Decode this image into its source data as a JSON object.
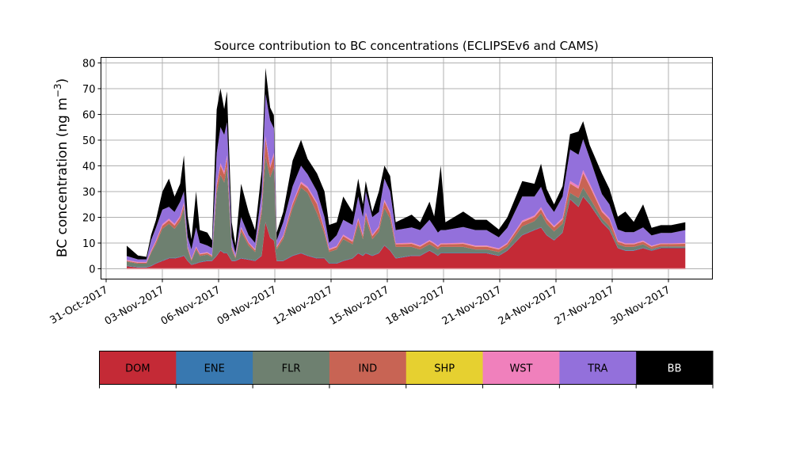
{
  "chart_data": {
    "type": "area",
    "stacked": true,
    "title": "Source contribution to BC concentrations (ECLIPSEv6 and CAMS)",
    "xlabel": "",
    "ylabel": "BC concentration (ng m",
    "ylabel_sup": "−3",
    "ylabel_close": ")",
    "ylim": [
      -4,
      82
    ],
    "yticks": [
      0,
      10,
      20,
      30,
      40,
      50,
      60,
      70,
      80
    ],
    "x_unit": "days since 31-Oct-2017",
    "xlim": [
      -0.3,
      32.3
    ],
    "xticks": [
      {
        "day": 0,
        "label": "31-Oct-2017"
      },
      {
        "day": 3,
        "label": "03-Nov-2017"
      },
      {
        "day": 6,
        "label": "06-Nov-2017"
      },
      {
        "day": 9,
        "label": "09-Nov-2017"
      },
      {
        "day": 12,
        "label": "12-Nov-2017"
      },
      {
        "day": 15,
        "label": "15-Nov-2017"
      },
      {
        "day": 18,
        "label": "18-Nov-2017"
      },
      {
        "day": 21,
        "label": "21-Nov-2017"
      },
      {
        "day": 24,
        "label": "24-Nov-2017"
      },
      {
        "day": 27,
        "label": "27-Nov-2017"
      },
      {
        "day": 30,
        "label": "30-Nov-2017"
      }
    ],
    "grid": true,
    "legend_position": "bottom-colorbar",
    "x": [
      1.1,
      1.7,
      2.15,
      2.4,
      2.65,
      3.0,
      3.35,
      3.65,
      3.95,
      4.15,
      4.35,
      4.55,
      4.8,
      5.0,
      5.4,
      5.65,
      5.9,
      6.1,
      6.3,
      6.45,
      6.7,
      6.9,
      7.2,
      7.6,
      7.95,
      8.3,
      8.5,
      8.75,
      8.95,
      9.1,
      9.45,
      9.95,
      10.4,
      10.75,
      11.25,
      11.65,
      11.9,
      12.3,
      12.65,
      13.15,
      13.45,
      13.7,
      13.85,
      14.2,
      14.55,
      14.85,
      15.15,
      15.45,
      16.3,
      16.75,
      17.25,
      17.5,
      17.7,
      17.85,
      18.1,
      19.05,
      19.7,
      20.3,
      20.95,
      21.4,
      22.2,
      22.85,
      23.2,
      23.5,
      23.9,
      24.35,
      24.75,
      25.2,
      25.45,
      25.8,
      26.45,
      26.85,
      27.3,
      27.7,
      28.15,
      28.65,
      29.1,
      29.6,
      30.15,
      30.9
    ],
    "series": [
      {
        "name": "DOM",
        "color": "#c42a36",
        "values": [
          1,
          0.5,
          0.5,
          1,
          2,
          3,
          4,
          4,
          4.5,
          5,
          3,
          1.5,
          2,
          2.5,
          3,
          3,
          5,
          7,
          6,
          6,
          3,
          3,
          4,
          3.5,
          3,
          5,
          18,
          12,
          11,
          3,
          3,
          5,
          6,
          5,
          4,
          4,
          2,
          2,
          3,
          4,
          6,
          5,
          6,
          5,
          6,
          9,
          7,
          4,
          5,
          5,
          7,
          6,
          5,
          6,
          6,
          6,
          6,
          6,
          5,
          7,
          13,
          15,
          16,
          13,
          11,
          14,
          27,
          24,
          28,
          25,
          18,
          15,
          8,
          7,
          7,
          8,
          7,
          8,
          8,
          8
        ]
      },
      {
        "name": "ENE",
        "color": "#3878b0",
        "values": [
          0.2,
          0.2,
          0.2,
          0.2,
          0.2,
          0.2,
          0.2,
          0.2,
          0.2,
          0.2,
          0.2,
          0.2,
          0.2,
          0.2,
          0.2,
          0.2,
          0.2,
          0.2,
          0.2,
          0.2,
          0.2,
          0.2,
          0.2,
          0.2,
          0.2,
          0.2,
          0.2,
          0.2,
          0.2,
          0.2,
          0.2,
          0.2,
          0.2,
          0.2,
          0.2,
          0.2,
          0.2,
          0.2,
          0.2,
          0.2,
          0.2,
          0.2,
          0.2,
          0.2,
          0.2,
          0.2,
          0.2,
          0.2,
          0.2,
          0.2,
          0.2,
          0.2,
          0.2,
          0.2,
          0.2,
          0.2,
          0.2,
          0.2,
          0.2,
          0.2,
          0.2,
          0.2,
          0.2,
          0.2,
          0.2,
          0.2,
          0.2,
          0.2,
          0.2,
          0.2,
          0.2,
          0.2,
          0.2,
          0.2,
          0.2,
          0.2,
          0.2,
          0.2,
          0.2,
          0.2
        ]
      },
      {
        "name": "FLR",
        "color": "#6e8070",
        "values": [
          1.6,
          1.3,
          1.3,
          5,
          7.3,
          12.3,
          13.3,
          11.3,
          13.8,
          18.3,
          4.3,
          1.3,
          5.3,
          2.3,
          2.3,
          1.3,
          24.3,
          29.3,
          27.3,
          33.3,
          4.3,
          0.8,
          10.3,
          5.3,
          3.3,
          16.3,
          25.3,
          23.3,
          28.3,
          4.3,
          8.3,
          18.3,
          25.3,
          24.3,
          17.3,
          9.3,
          4.3,
          5.3,
          8.3,
          5.3,
          11.3,
          6.3,
          13.3,
          6.3,
          8.3,
          14.3,
          12.3,
          4.3,
          3.3,
          2.3,
          2.3,
          2.3,
          2.3,
          2.3,
          2.3,
          2.3,
          1.3,
          1.3,
          1.3,
          1.3,
          3.3,
          3.3,
          5.3,
          4.3,
          3.3,
          3.3,
          2.3,
          3.3,
          3.3,
          2.3,
          1.3,
          1.3,
          1.3,
          1.3,
          1.3,
          1.3,
          0.5,
          0.5,
          0.5,
          0.5
        ]
      },
      {
        "name": "IND",
        "color": "#c86454",
        "values": [
          0.3,
          0.3,
          0.3,
          0.5,
          0.8,
          1.2,
          1.3,
          1.3,
          1.4,
          1.5,
          0.8,
          0.5,
          0.7,
          0.6,
          0.6,
          0.5,
          2.6,
          3.6,
          3.2,
          3.6,
          0.8,
          0.5,
          1.2,
          0.9,
          0.7,
          2.0,
          7.0,
          3.6,
          4.6,
          0.8,
          1.0,
          1.6,
          1.6,
          1.7,
          3.6,
          1.4,
          0.8,
          0.9,
          1.2,
          1.0,
          1.6,
          1.2,
          1.8,
          1.2,
          1.4,
          2.6,
          2.0,
          1.0,
          1.2,
          1.1,
          1.2,
          1.1,
          1.0,
          1.0,
          1.0,
          1.2,
          1.1,
          1.1,
          1.0,
          1.1,
          1.6,
          1.6,
          1.6,
          1.6,
          1.6,
          1.6,
          3.6,
          3.6,
          5.6,
          4.6,
          2.6,
          2.6,
          1.0,
          1.0,
          1.0,
          1.0,
          0.9,
          0.9,
          0.9,
          1.0
        ]
      },
      {
        "name": "SHP",
        "color": "#e6d030",
        "values": [
          0.05,
          0.05,
          0.05,
          0.05,
          0.05,
          0.05,
          0.05,
          0.05,
          0.05,
          0.05,
          0.05,
          0.05,
          0.05,
          0.05,
          0.05,
          0.05,
          0.05,
          0.05,
          0.05,
          0.05,
          0.05,
          0.05,
          0.05,
          0.05,
          0.05,
          0.05,
          0.05,
          0.05,
          0.05,
          0.05,
          0.05,
          0.05,
          0.05,
          0.05,
          0.05,
          0.05,
          0.05,
          0.05,
          0.05,
          0.05,
          0.05,
          0.05,
          0.05,
          0.05,
          0.05,
          0.05,
          0.05,
          0.05,
          0.05,
          0.05,
          0.05,
          0.05,
          0.05,
          0.05,
          0.05,
          0.05,
          0.05,
          0.05,
          0.05,
          0.05,
          0.05,
          0.05,
          0.05,
          0.05,
          0.05,
          0.05,
          0.05,
          0.05,
          0.05,
          0.05,
          0.05,
          0.05,
          0.05,
          0.05,
          0.05,
          0.05,
          0.05,
          0.05,
          0.05,
          0.05
        ]
      },
      {
        "name": "WST",
        "color": "#f080bc",
        "values": [
          0.3,
          0.3,
          0.3,
          0.4,
          0.5,
          0.6,
          0.6,
          0.6,
          0.6,
          0.7,
          0.4,
          0.3,
          0.4,
          0.3,
          0.3,
          0.3,
          0.8,
          0.9,
          0.9,
          0.9,
          0.4,
          0.3,
          0.5,
          0.4,
          0.4,
          0.7,
          1.0,
          0.9,
          0.9,
          0.4,
          0.4,
          0.6,
          0.7,
          0.7,
          0.6,
          0.5,
          0.4,
          0.4,
          0.5,
          0.5,
          0.6,
          0.5,
          0.6,
          0.5,
          0.5,
          0.7,
          0.6,
          0.4,
          0.4,
          0.4,
          0.4,
          0.4,
          0.4,
          0.4,
          0.4,
          0.4,
          0.4,
          0.4,
          0.4,
          0.4,
          0.6,
          0.6,
          0.8,
          0.6,
          0.5,
          0.6,
          1.0,
          1.0,
          1.2,
          1.0,
          0.7,
          0.6,
          0.4,
          0.4,
          0.4,
          0.4,
          0.3,
          0.3,
          0.3,
          0.3
        ]
      },
      {
        "name": "TRA",
        "color": "#9370db",
        "values": [
          1.5,
          1,
          1,
          4,
          4.9,
          5.6,
          4.6,
          4.6,
          5.5,
          4.3,
          3.7,
          3.7,
          7.4,
          4.1,
          2.6,
          2.7,
          12,
          14,
          14.4,
          12.9,
          3.3,
          1.2,
          3.8,
          2.7,
          2.4,
          5.8,
          16.5,
          17.6,
          9.6,
          2.3,
          5.1,
          6.3,
          6.2,
          4.8,
          4.3,
          4.6,
          2.3,
          4.2,
          5.8,
          6,
          8.3,
          6.8,
          8.1,
          6.8,
          5.6,
          8.2,
          7.9,
          5.1,
          5.9,
          6.0,
          7.9,
          6.3,
          5.1,
          5.1,
          5.1,
          6.1,
          6.0,
          6.0,
          4.3,
          5.9,
          9.3,
          7.3,
          7.9,
          6.3,
          5.4,
          8.3,
          12.2,
          12.2,
          12.0,
          9.9,
          6.2,
          5.3,
          4.3,
          4.3,
          4.3,
          5.1,
          4.0,
          4.0,
          4.0,
          5.0
        ]
      },
      {
        "name": "BB",
        "color": "#000000",
        "values": [
          4,
          1.5,
          1,
          2,
          3,
          7,
          11,
          6,
          7,
          14,
          8,
          4,
          14,
          5,
          5,
          3,
          17,
          15,
          10,
          12,
          6,
          3,
          13,
          9,
          5,
          8,
          10,
          5,
          5,
          3,
          4,
          10,
          10,
          6,
          7,
          10,
          7,
          5,
          9,
          5,
          7,
          5,
          4,
          2,
          8,
          5,
          6,
          3,
          5,
          3,
          7,
          4,
          17,
          25,
          3,
          6,
          4,
          4,
          3,
          4,
          6,
          5,
          9,
          5,
          3,
          4,
          6,
          9,
          7,
          5,
          8,
          6,
          5,
          8,
          4,
          9,
          3,
          3,
          3,
          3
        ]
      }
    ]
  }
}
